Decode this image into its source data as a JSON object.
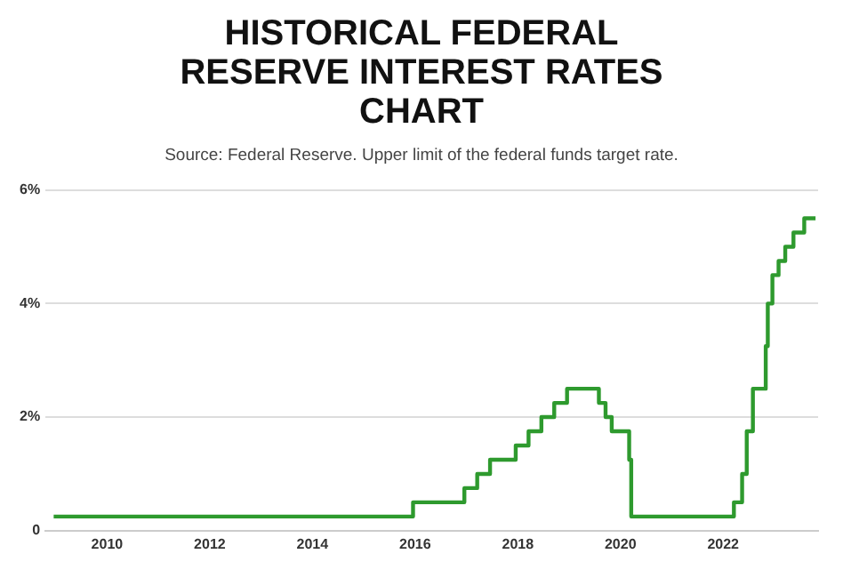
{
  "chart_data": {
    "type": "step",
    "title": "HISTORICAL FEDERAL RESERVE INTEREST RATES CHART",
    "subtitle": "Source: Federal Reserve. Upper limit of the federal funds target rate.",
    "x": [
      2008.96,
      2015.96,
      2016.96,
      2017.21,
      2017.46,
      2017.96,
      2018.21,
      2018.46,
      2018.71,
      2018.96,
      2019.58,
      2019.71,
      2019.83,
      2020.17,
      2020.21,
      2022.21,
      2022.37,
      2022.46,
      2022.58,
      2022.83,
      2022.87,
      2022.96,
      2023.08,
      2023.21,
      2023.37,
      2023.58,
      2023.8
    ],
    "series": [
      {
        "color": "#2e9a2e",
        "values": [
          0.25,
          0.5,
          0.75,
          1.0,
          1.25,
          1.5,
          1.75,
          2.0,
          2.25,
          2.5,
          2.25,
          2.0,
          1.75,
          1.25,
          0.25,
          0.5,
          1.0,
          1.75,
          2.5,
          3.25,
          4.0,
          4.5,
          4.75,
          5.0,
          5.25,
          5.5,
          5.5
        ]
      }
    ],
    "xlim": [
      2008.8,
      2023.85
    ],
    "xticks": [
      2010,
      2012,
      2014,
      2016,
      2018,
      2020,
      2022
    ],
    "ylim": [
      0,
      6
    ],
    "yticks": [
      {
        "value": 0,
        "label": "0"
      },
      {
        "value": 2,
        "label": "2%"
      },
      {
        "value": 4,
        "label": "4%"
      },
      {
        "value": 6,
        "label": "6%"
      }
    ],
    "grid": "y",
    "legend": false,
    "marker": "none",
    "line_style": "solid"
  }
}
